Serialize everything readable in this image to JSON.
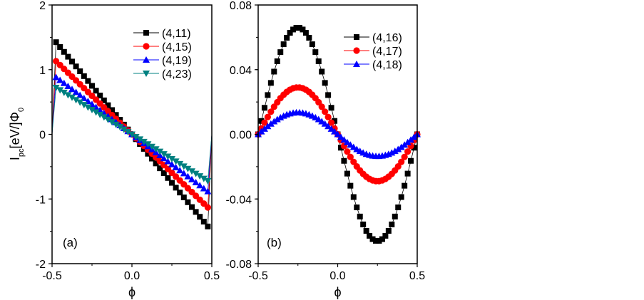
{
  "figure": {
    "y_axis_title": {
      "main": "I",
      "sub": "pc",
      "middle": "[eV/]Φ",
      "sub2": "0"
    },
    "x_axis_symbol": "ϕ"
  },
  "chart_data": [
    {
      "type": "line",
      "panel_label": "(a)",
      "xlabel": "ϕ",
      "ylabel": "Ipc[eV/]Φ0",
      "xlim": [
        -0.5,
        0.5
      ],
      "ylim": [
        -2,
        2
      ],
      "xticks": [
        -0.5,
        0.0,
        0.5
      ],
      "xtick_labels": [
        "-0.5",
        "0.0",
        "0.5"
      ],
      "yticks": [
        -2,
        -1,
        0,
        1,
        2
      ],
      "ytick_labels": [
        "-2",
        "-1",
        "0",
        "1",
        "2"
      ],
      "legend_position": "top-right",
      "series": [
        {
          "name": "(4,11)",
          "color": "#000000",
          "marker": "square",
          "form": "sawtooth",
          "amplitude": 1.5,
          "points": 41
        },
        {
          "name": "(4,15)",
          "color": "#ff0000",
          "marker": "circle",
          "form": "sawtooth",
          "amplitude": 1.19,
          "points": 41
        },
        {
          "name": "(4,19)",
          "color": "#0000ff",
          "marker": "triangle-up",
          "form": "sawtooth",
          "amplitude": 0.93,
          "points": 41
        },
        {
          "name": "(4,23)",
          "color": "#008080",
          "marker": "triangle-down",
          "form": "sawtooth",
          "amplitude": 0.76,
          "points": 41
        }
      ]
    },
    {
      "type": "line",
      "panel_label": "(b)",
      "xlabel": "ϕ",
      "ylabel": "",
      "xlim": [
        -0.5,
        0.5
      ],
      "ylim": [
        -0.08,
        0.08
      ],
      "xticks": [
        -0.5,
        0.0,
        0.5
      ],
      "xtick_labels": [
        "-0.5",
        "0.0",
        "0.5"
      ],
      "yticks": [
        -0.08,
        -0.04,
        0.0,
        0.04,
        0.08
      ],
      "ytick_labels": [
        "-0.08",
        "-0.04",
        "0.00",
        "0.04",
        "0.08"
      ],
      "legend_position": "top-right",
      "series": [
        {
          "name": "(4,16)",
          "color": "#000000",
          "marker": "square",
          "form": "sine",
          "amplitude": 0.066,
          "points": 51
        },
        {
          "name": "(4,17)",
          "color": "#ff0000",
          "marker": "circle",
          "form": "sine",
          "amplitude": 0.029,
          "points": 51
        },
        {
          "name": "(4,18)",
          "color": "#0000ff",
          "marker": "triangle-up",
          "form": "sine",
          "amplitude": 0.0135,
          "points": 51
        }
      ]
    }
  ]
}
